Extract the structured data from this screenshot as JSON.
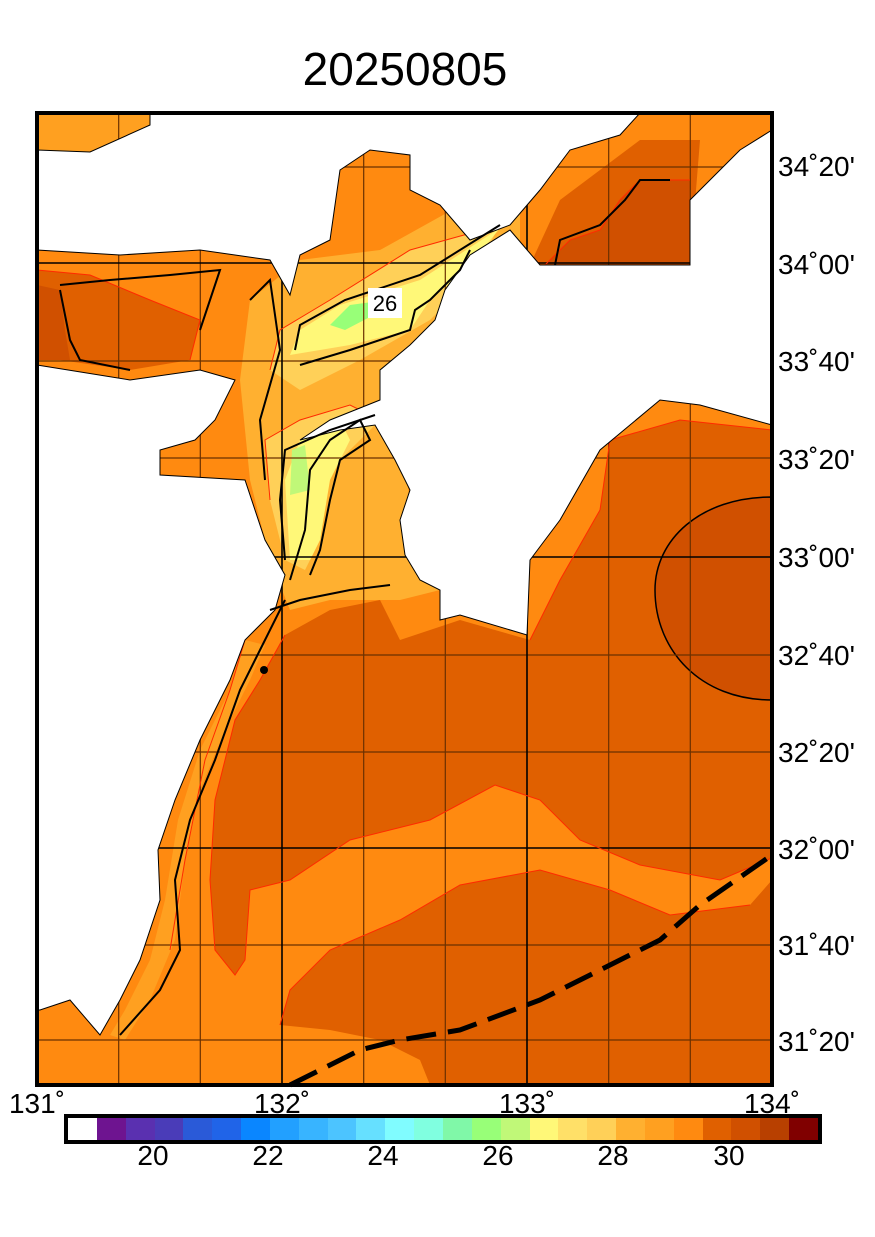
{
  "title": "20250805",
  "lat_labels": [
    "34˚20'",
    "34˚00'",
    "33˚40'",
    "33˚20'",
    "33˚00'",
    "32˚40'",
    "32˚20'",
    "32˚00'",
    "31˚40'",
    "31˚20'"
  ],
  "lon_labels": [
    "131˚",
    "132˚",
    "133˚",
    "134˚"
  ],
  "contour_label": "26",
  "colorbar": {
    "colors": [
      "#ffffff",
      "#6e1490",
      "#5a30b0",
      "#4a3cb8",
      "#2a5ad8",
      "#2064e8",
      "#0a86ff",
      "#22a0ff",
      "#38b4ff",
      "#4cc4ff",
      "#66e0ff",
      "#80fcff",
      "#80ffe0",
      "#80f8a8",
      "#98ff78",
      "#c0f878",
      "#fff878",
      "#ffe068",
      "#ffd058",
      "#ffb030",
      "#ffa020",
      "#ff8a10",
      "#e06000",
      "#d05000",
      "#b84000",
      "#800000"
    ],
    "tick_labels": [
      "20",
      "22",
      "24",
      "26",
      "28",
      "30"
    ]
  }
}
